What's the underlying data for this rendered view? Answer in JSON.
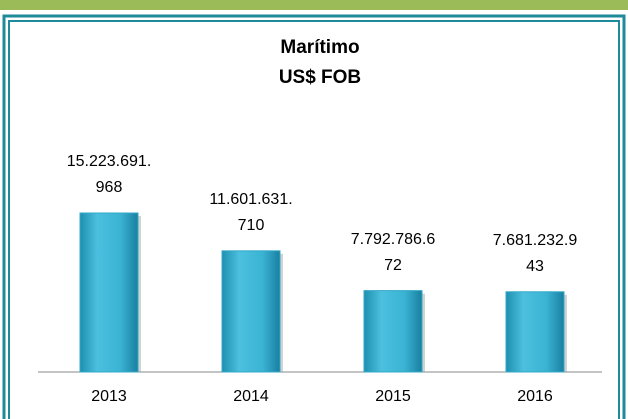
{
  "chart_data": {
    "type": "bar",
    "title": "Marítimo",
    "subtitle": "US$ FOB",
    "categories": [
      "2013",
      "2014",
      "2015",
      "2016"
    ],
    "values": [
      15223691968,
      11601631710,
      7792786672,
      7681232943
    ],
    "value_labels": [
      "15.223.691.968",
      "11.601.631.710",
      "7.792.786.672",
      "7.681.232.943"
    ],
    "color": "#33a8c8"
  }
}
